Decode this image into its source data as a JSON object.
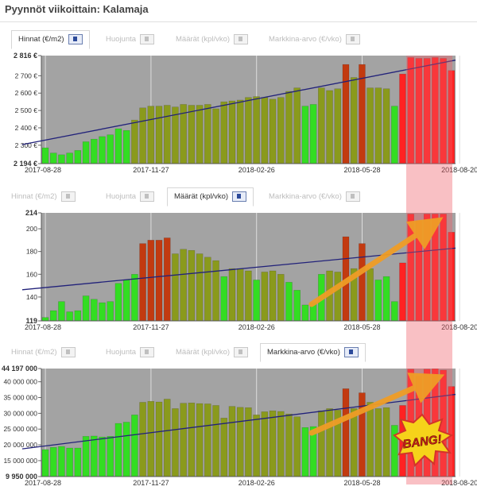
{
  "page": {
    "title": "Pyynnöt viikoittain: Kalamaja"
  },
  "tabs": [
    {
      "label": "Hinnat (€/m2)"
    },
    {
      "label": "Huojunta"
    },
    {
      "label": "Määrät (kpl/vko)"
    },
    {
      "label": "Markkina-arvo (€/vko)"
    }
  ],
  "annotation": {
    "text": "BANG!"
  },
  "colors": {
    "plot_bg": "#a3a3a3",
    "trend": "#22227a",
    "highlight": "#f05a64",
    "arrow": "#ef9d26",
    "green": "#33dd22",
    "olive": "#8a9a1c",
    "dark_red": "#c23a10",
    "red": "#ff2222"
  },
  "chart_data": [
    {
      "type": "bar",
      "active_tab": "Hinnat (€/m2)",
      "ylim": [
        2194,
        2816
      ],
      "y_ticks": [
        2194,
        2300,
        2400,
        2500,
        2600,
        2700,
        2816
      ],
      "y_tick_labels": [
        "2 194 €",
        "2 300 €",
        "2 400 €",
        "2 500 €",
        "2 600 €",
        "2 700 €",
        "2 816 €"
      ],
      "x_labels": [
        "2017-08-28",
        "2017-11-27",
        "2018-02-26",
        "2018-05-28",
        "2018-08-20"
      ],
      "x_label_weeks": [
        0,
        13,
        26,
        39,
        51
      ],
      "trendline": [
        2325,
        2790
      ],
      "values": [
        2285,
        2255,
        2245,
        2255,
        2270,
        2320,
        2335,
        2350,
        2360,
        2395,
        2385,
        2445,
        2515,
        2525,
        2525,
        2530,
        2520,
        2535,
        2530,
        2530,
        2535,
        2510,
        2550,
        2555,
        2560,
        2575,
        2580,
        2575,
        2565,
        2575,
        2610,
        2630,
        2525,
        2535,
        2630,
        2615,
        2625,
        2765,
        2690,
        2765,
        2630,
        2630,
        2625,
        2525,
        2710,
        2805,
        2800,
        2800,
        2805,
        2800,
        2730
      ],
      "colors": [
        "green",
        "green",
        "green",
        "green",
        "green",
        "green",
        "green",
        "green",
        "green",
        "green",
        "green",
        "olive",
        "olive",
        "olive",
        "olive",
        "olive",
        "olive",
        "olive",
        "olive",
        "olive",
        "olive",
        "olive",
        "olive",
        "olive",
        "olive",
        "olive",
        "olive",
        "olive",
        "olive",
        "olive",
        "olive",
        "olive",
        "green",
        "green",
        "olive",
        "olive",
        "olive",
        "dark_red",
        "olive",
        "dark_red",
        "olive",
        "olive",
        "olive",
        "green",
        "red",
        "red",
        "red",
        "red",
        "red",
        "red",
        "red"
      ]
    },
    {
      "type": "bar",
      "active_tab": "Määrät (kpl/vko)",
      "ylim": [
        119,
        214
      ],
      "y_ticks": [
        119,
        140,
        160,
        180,
        200,
        214
      ],
      "y_tick_labels": [
        "119",
        "140",
        "160",
        "180",
        "200",
        "214"
      ],
      "x_labels": [
        "2017-08-28",
        "2017-11-27",
        "2018-02-26",
        "2018-05-28",
        "2018-08-20"
      ],
      "x_label_weeks": [
        0,
        13,
        26,
        39,
        51
      ],
      "trendline": [
        148,
        183
      ],
      "values": [
        122,
        128,
        136,
        127,
        128,
        141,
        138,
        135,
        136,
        152,
        155,
        160,
        187,
        190,
        190,
        192,
        178,
        182,
        181,
        178,
        175,
        172,
        158,
        165,
        165,
        163,
        155,
        162,
        163,
        160,
        153,
        146,
        133,
        135,
        160,
        163,
        162,
        193,
        165,
        187,
        165,
        155,
        158,
        136,
        170,
        213,
        207,
        213,
        213,
        213,
        197
      ],
      "colors": [
        "green",
        "green",
        "green",
        "green",
        "green",
        "green",
        "green",
        "green",
        "green",
        "green",
        "green",
        "green",
        "dark_red",
        "dark_red",
        "dark_red",
        "dark_red",
        "olive",
        "olive",
        "olive",
        "olive",
        "olive",
        "olive",
        "green",
        "olive",
        "olive",
        "olive",
        "green",
        "olive",
        "olive",
        "olive",
        "green",
        "green",
        "green",
        "green",
        "green",
        "olive",
        "olive",
        "dark_red",
        "olive",
        "dark_red",
        "olive",
        "green",
        "green",
        "green",
        "red",
        "red",
        "red",
        "red",
        "red",
        "red",
        "red"
      ]
    },
    {
      "type": "bar",
      "active_tab": "Markkina-arvo (€/vko)",
      "ylim": [
        9950000,
        44197000
      ],
      "y_ticks": [
        9950000,
        15000000,
        20000000,
        25000000,
        30000000,
        35000000,
        40000000,
        44197000
      ],
      "y_tick_labels": [
        "9 950 000",
        "15 000 000",
        "20 000 000",
        "25 000 000",
        "30 000 000",
        "35 000 000",
        "40 000 000",
        "44 197 000"
      ],
      "x_labels": [
        "2017-08-28",
        "2017-11-27",
        "2018-02-26",
        "2018-05-28",
        "2018-08-20"
      ],
      "x_label_weeks": [
        0,
        13,
        26,
        39,
        51
      ],
      "trendline": [
        19500000,
        36000000
      ],
      "values": [
        18500000,
        19200000,
        19500000,
        19000000,
        19000000,
        22700000,
        22800000,
        22500000,
        22700000,
        26800000,
        27200000,
        29500000,
        33500000,
        33800000,
        33600000,
        34500000,
        31500000,
        33200000,
        33300000,
        33100000,
        33000000,
        32500000,
        28500000,
        32200000,
        31900000,
        31800000,
        29500000,
        30500000,
        30800000,
        30600000,
        29800000,
        28900000,
        25500000,
        25800000,
        30800000,
        31500000,
        31000000,
        37800000,
        31500000,
        36500000,
        33500000,
        31500000,
        31800000,
        26200000,
        32500000,
        44000000,
        41800000,
        44000000,
        44100000,
        43700000,
        38500000
      ],
      "colors": [
        "green",
        "green",
        "green",
        "green",
        "green",
        "green",
        "green",
        "green",
        "green",
        "green",
        "green",
        "green",
        "olive",
        "olive",
        "olive",
        "olive",
        "olive",
        "olive",
        "olive",
        "olive",
        "olive",
        "olive",
        "olive",
        "olive",
        "olive",
        "olive",
        "olive",
        "olive",
        "olive",
        "olive",
        "olive",
        "olive",
        "green",
        "green",
        "olive",
        "olive",
        "olive",
        "dark_red",
        "olive",
        "dark_red",
        "olive",
        "olive",
        "olive",
        "green",
        "red",
        "red",
        "red",
        "red",
        "red",
        "red",
        "red"
      ]
    }
  ]
}
